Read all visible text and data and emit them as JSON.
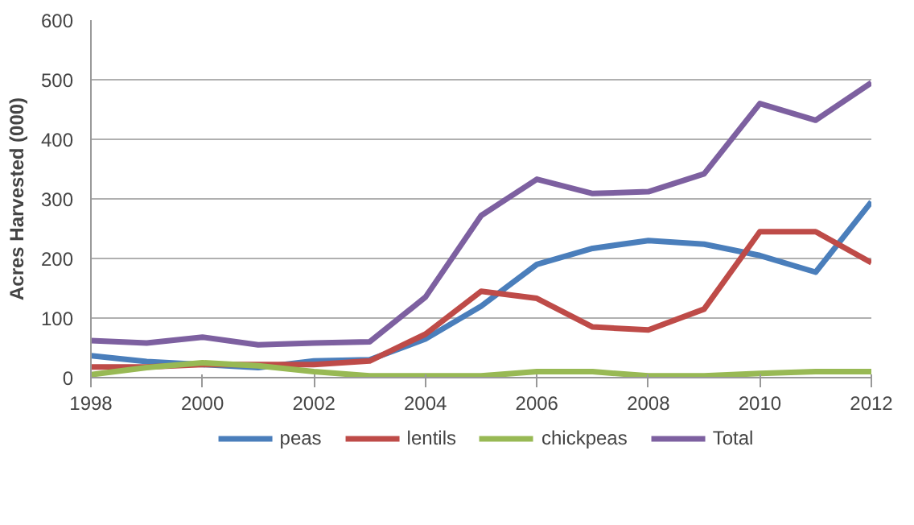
{
  "chart_data": {
    "type": "line",
    "ylabel": "Acres Harvested (000)",
    "x": [
      1998,
      1999,
      2000,
      2001,
      2002,
      2003,
      2004,
      2005,
      2006,
      2007,
      2008,
      2009,
      2010,
      2011,
      2012
    ],
    "series": [
      {
        "name": "peas",
        "color": "#4a7ebb",
        "values": [
          37,
          27,
          22,
          17,
          28,
          30,
          65,
          120,
          190,
          217,
          230,
          224,
          205,
          177,
          295
        ]
      },
      {
        "name": "lentils",
        "color": "#be4b48",
        "values": [
          18,
          18,
          22,
          22,
          22,
          28,
          73,
          145,
          133,
          85,
          80,
          115,
          245,
          245,
          193
        ]
      },
      {
        "name": "chickpeas",
        "color": "#98b954",
        "values": [
          5,
          17,
          25,
          20,
          10,
          3,
          3,
          3,
          10,
          10,
          3,
          3,
          7,
          10,
          10
        ]
      },
      {
        "name": "Total",
        "color": "#7d60a0",
        "values": [
          62,
          58,
          68,
          55,
          58,
          60,
          135,
          272,
          333,
          309,
          312,
          342,
          460,
          432,
          495
        ]
      }
    ],
    "xlim": [
      1998,
      2012
    ],
    "xticks": [
      1998,
      2000,
      2002,
      2004,
      2006,
      2008,
      2010,
      2012
    ],
    "ylim": [
      0,
      600
    ],
    "yticks": [
      0,
      100,
      200,
      300,
      400,
      500,
      600
    ],
    "grid": "y",
    "legend": "bottom",
    "marker": "none",
    "line_style": "solid"
  }
}
